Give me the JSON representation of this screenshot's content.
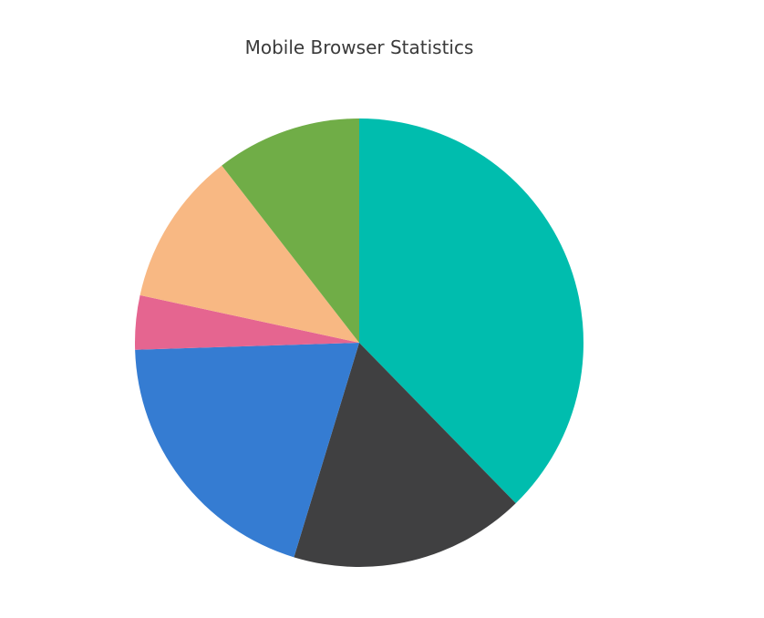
{
  "chart_data": {
    "type": "pie",
    "title": "Mobile Browser Statistics",
    "slices": [
      {
        "value": 37.7,
        "color": "#00bdae"
      },
      {
        "value": 17.0,
        "color": "#404041"
      },
      {
        "value": 19.8,
        "color": "#357cd2"
      },
      {
        "value": 3.9,
        "color": "#e56590"
      },
      {
        "value": 11.1,
        "color": "#f8b883"
      },
      {
        "value": 10.5,
        "color": "#70ad47"
      }
    ]
  }
}
